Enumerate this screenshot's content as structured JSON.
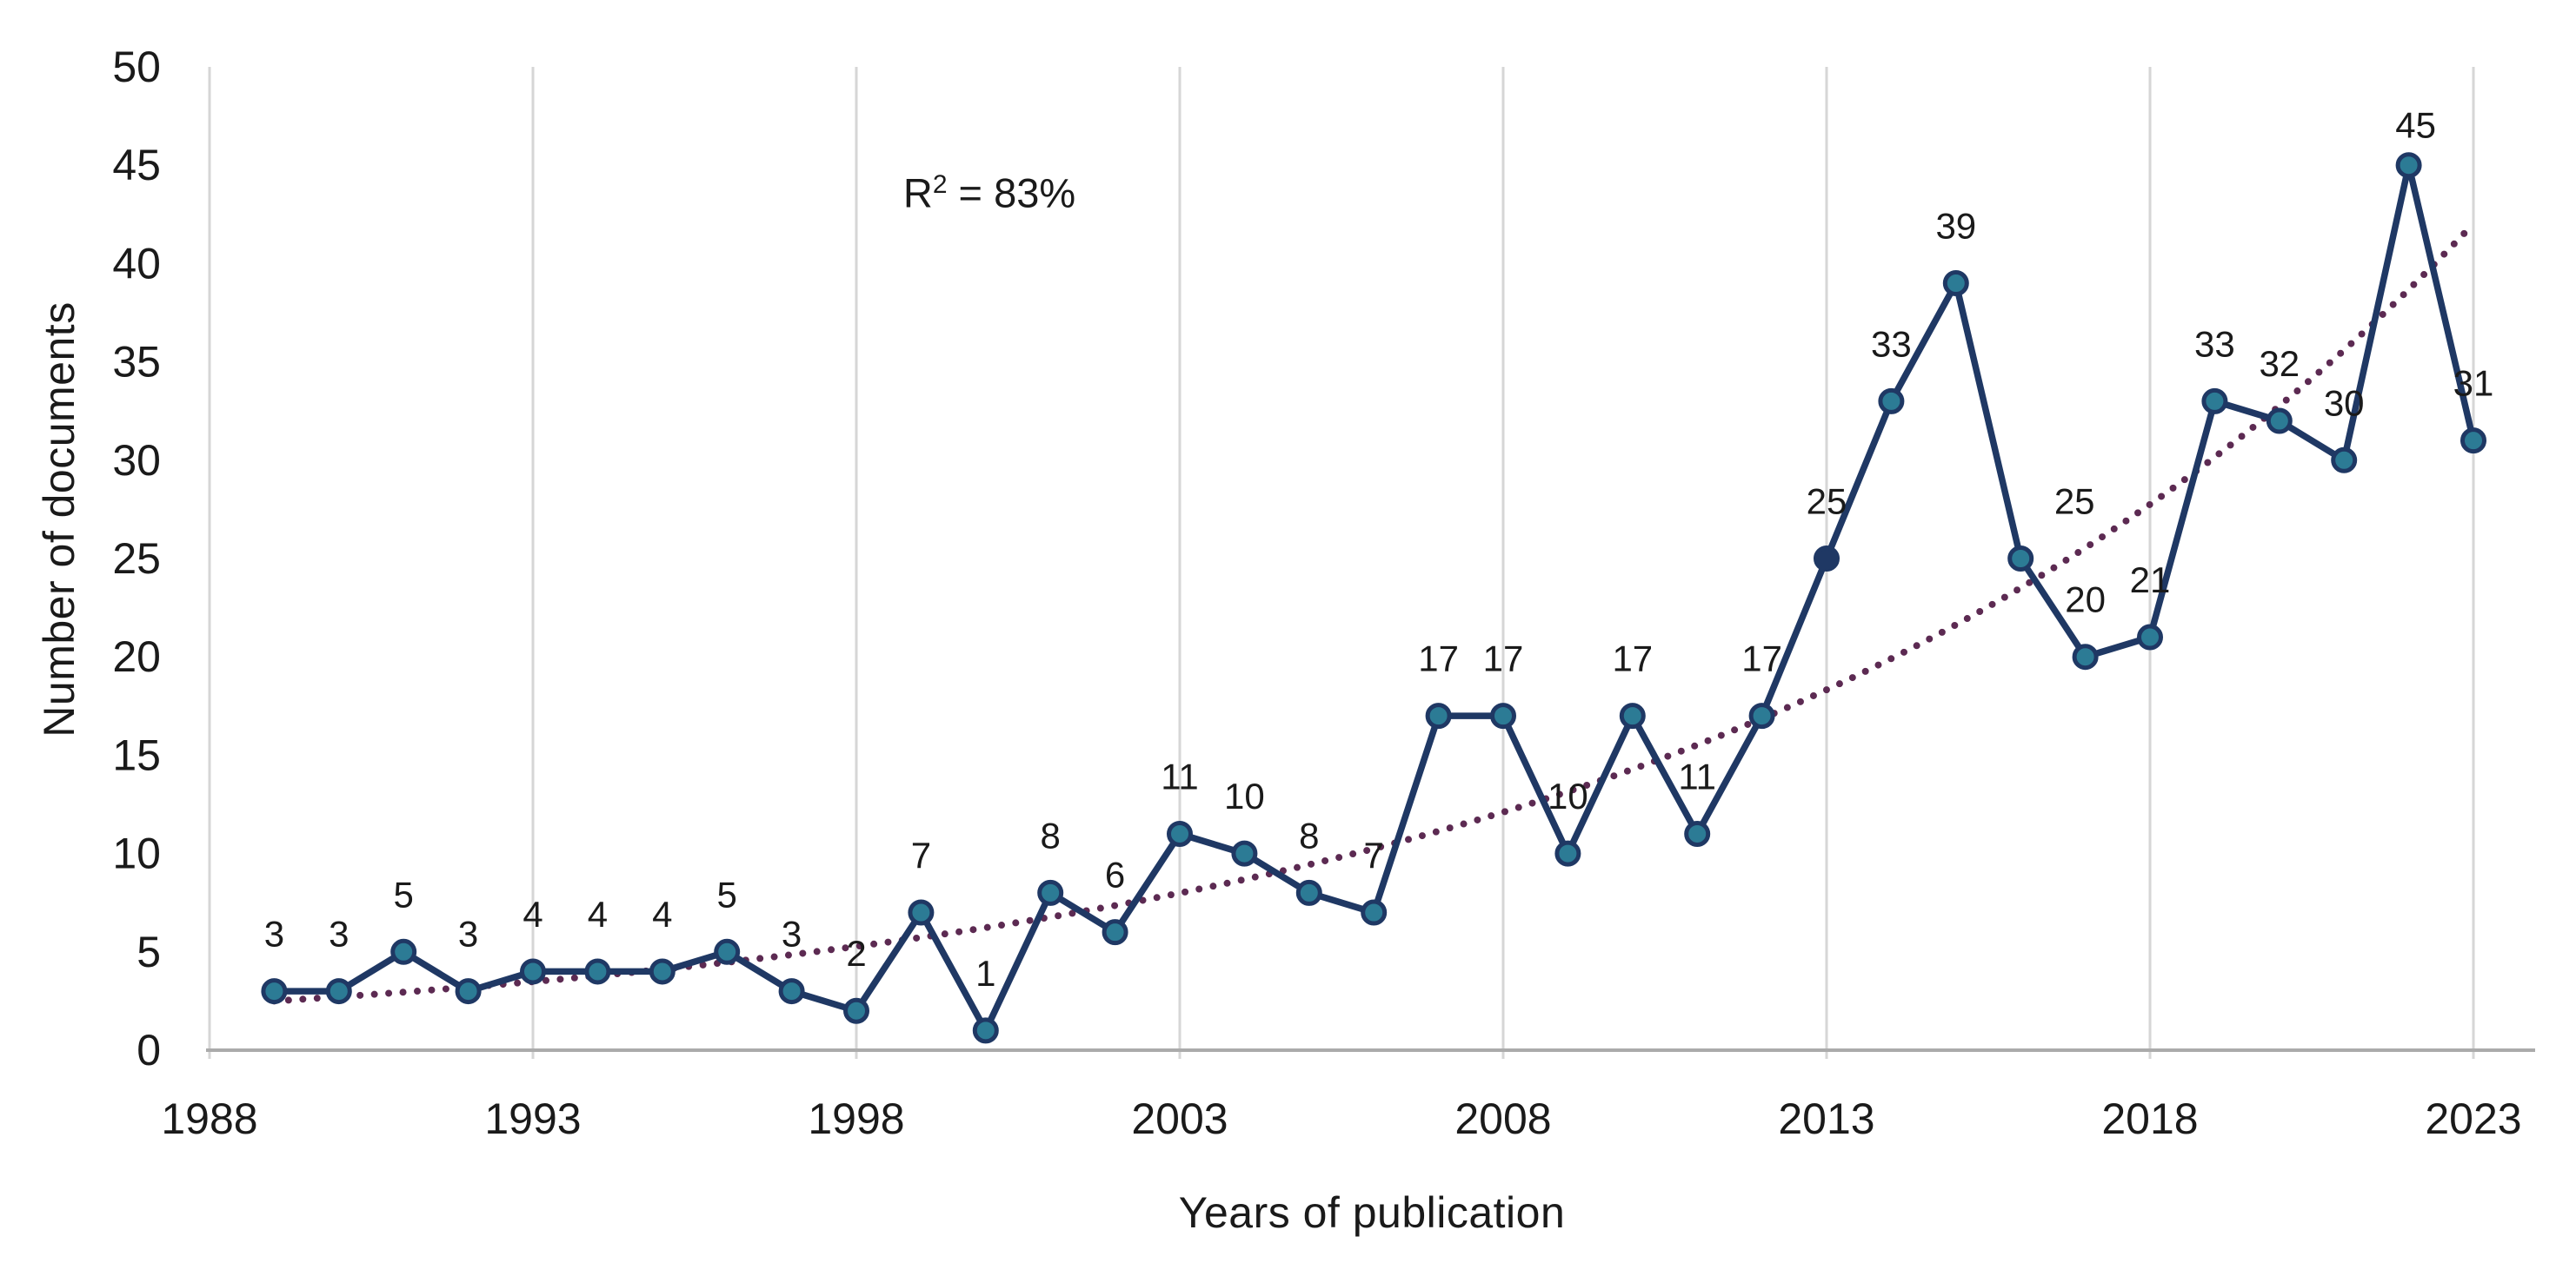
{
  "chart_data": {
    "type": "line",
    "title": "",
    "xlabel": "Years of publication",
    "ylabel": "Number of documents",
    "annotation": {
      "display": "R² = 83%",
      "base": "R",
      "sup": "2",
      "rest": " = 83%"
    },
    "years": [
      1989,
      1990,
      1991,
      1992,
      1993,
      1994,
      1995,
      1996,
      1997,
      1998,
      1999,
      2000,
      2001,
      2002,
      2003,
      2004,
      2005,
      2006,
      2007,
      2008,
      2009,
      2010,
      2011,
      2012,
      2013,
      2014,
      2015,
      2016,
      2017,
      2018,
      2019,
      2020,
      2021,
      2022,
      2023
    ],
    "values": [
      3,
      3,
      5,
      3,
      4,
      4,
      4,
      5,
      3,
      2,
      7,
      1,
      8,
      6,
      11,
      10,
      8,
      7,
      17,
      17,
      10,
      17,
      11,
      17,
      25,
      33,
      39,
      25,
      20,
      21,
      33,
      32,
      30,
      45,
      31
    ],
    "x_ticks": [
      1988,
      1993,
      1998,
      2003,
      2008,
      2013,
      2018,
      2023
    ],
    "y_ticks": [
      0,
      5,
      10,
      15,
      20,
      25,
      30,
      35,
      40,
      45,
      50
    ],
    "xlim": [
      1988,
      2024
    ],
    "ylim": [
      0,
      50
    ],
    "grid": "vertical-only",
    "trendline": {
      "type": "exponential",
      "a": 2.5,
      "b": 0.083,
      "t0_year": 1989,
      "start_year": 1989,
      "end_year": 2023,
      "r_squared": "83%"
    },
    "colors": {
      "series_line": "#1f3864",
      "marker_fill": "#2c7b95",
      "marker_stroke": "#1f3864",
      "special_marker_fill": "#1f3864",
      "trendline": "#5c2a52",
      "gridline": "#d6d6d6",
      "axis_line": "#ababab",
      "text": "#1a1a1a"
    },
    "special_marker_year": 2013
  }
}
